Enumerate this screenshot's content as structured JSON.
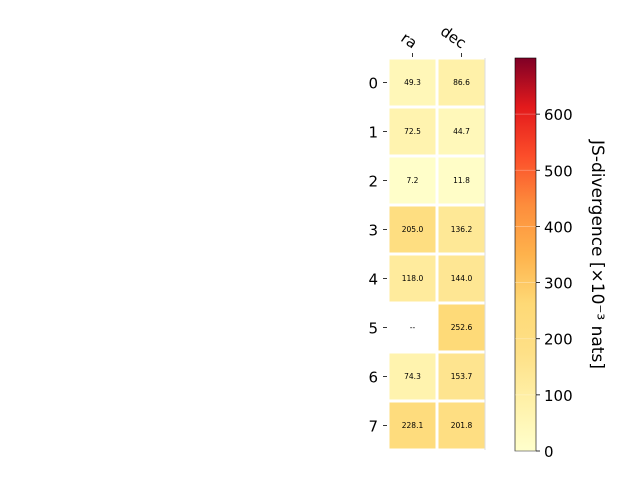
{
  "chart_data": {
    "type": "heatmap",
    "columns": [
      "ra",
      "dec"
    ],
    "rows": [
      "0",
      "1",
      "2",
      "3",
      "4",
      "5",
      "6",
      "7"
    ],
    "values": [
      [
        49.3,
        86.6
      ],
      [
        72.5,
        44.7
      ],
      [
        7.2,
        11.8
      ],
      [
        205.0,
        136.2
      ],
      [
        118.0,
        144.0
      ],
      [
        null,
        252.6
      ],
      [
        74.3,
        153.7
      ],
      [
        228.1,
        201.8
      ]
    ],
    "cell_labels": [
      [
        "49.3",
        "86.6"
      ],
      [
        "72.5",
        "44.7"
      ],
      [
        "7.2",
        "11.8"
      ],
      [
        "205.0",
        "136.2"
      ],
      [
        "118.0",
        "144.0"
      ],
      [
        "--",
        "252.6"
      ],
      [
        "74.3",
        "153.7"
      ],
      [
        "228.1",
        "201.8"
      ]
    ],
    "colorbar": {
      "label": "JS-divergence [×10⁻³ nats]",
      "min": 0,
      "max": 700,
      "ticks": [
        "0",
        "100",
        "200",
        "300",
        "400",
        "500",
        "600"
      ],
      "colormap": "YlOrRd"
    }
  }
}
